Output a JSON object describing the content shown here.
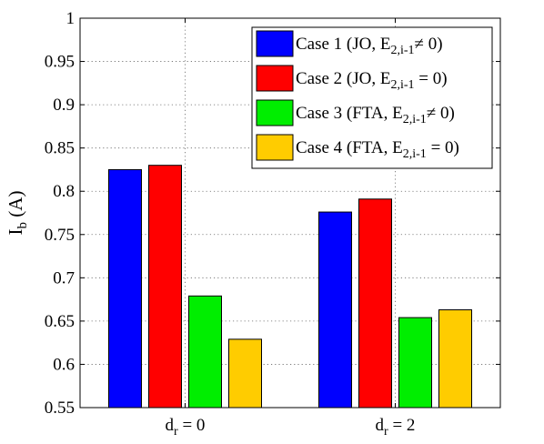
{
  "chart_data": {
    "type": "bar",
    "categories": [
      {
        "main": "d",
        "sub": "r",
        "rest": " = 0"
      },
      {
        "main": "d",
        "sub": "r",
        "rest": " = 2"
      }
    ],
    "series": [
      {
        "name": "Case 1 (JO, E2,i-1≠ 0)",
        "legend_parts": {
          "pre": "Case 1 (JO, E",
          "sub": "2,i-1",
          "post": "≠ 0)"
        },
        "color": "#0000ff",
        "values": [
          0.825,
          0.776
        ]
      },
      {
        "name": "Case 2 (JO, E2,i-1 = 0)",
        "legend_parts": {
          "pre": "Case 2 (JO, E",
          "sub": "2,i-1",
          "post": " = 0)"
        },
        "color": "#ff0000",
        "values": [
          0.83,
          0.791
        ]
      },
      {
        "name": "Case 3 (FTA, E2,i-1≠ 0)",
        "legend_parts": {
          "pre": "Case 3 (FTA, E",
          "sub": "2,i-1",
          "post": "≠ 0)"
        },
        "color": "#00ee00",
        "values": [
          0.679,
          0.654
        ]
      },
      {
        "name": "Case 4 (FTA, E2,i-1 = 0)",
        "legend_parts": {
          "pre": "Case 4 (FTA, E",
          "sub": "2,i-1",
          "post": " = 0)"
        },
        "color": "#ffcc00",
        "values": [
          0.629,
          0.663
        ]
      }
    ],
    "ylabel": {
      "main": "I",
      "sub": "b",
      "rest": " (A)"
    },
    "ylim": [
      0.55,
      1
    ],
    "yticks": [
      "0.55",
      "0.6",
      "0.65",
      "0.7",
      "0.75",
      "0.8",
      "0.85",
      "0.9",
      "0.95",
      "1"
    ],
    "grid": true,
    "legend_position": "top-right"
  }
}
